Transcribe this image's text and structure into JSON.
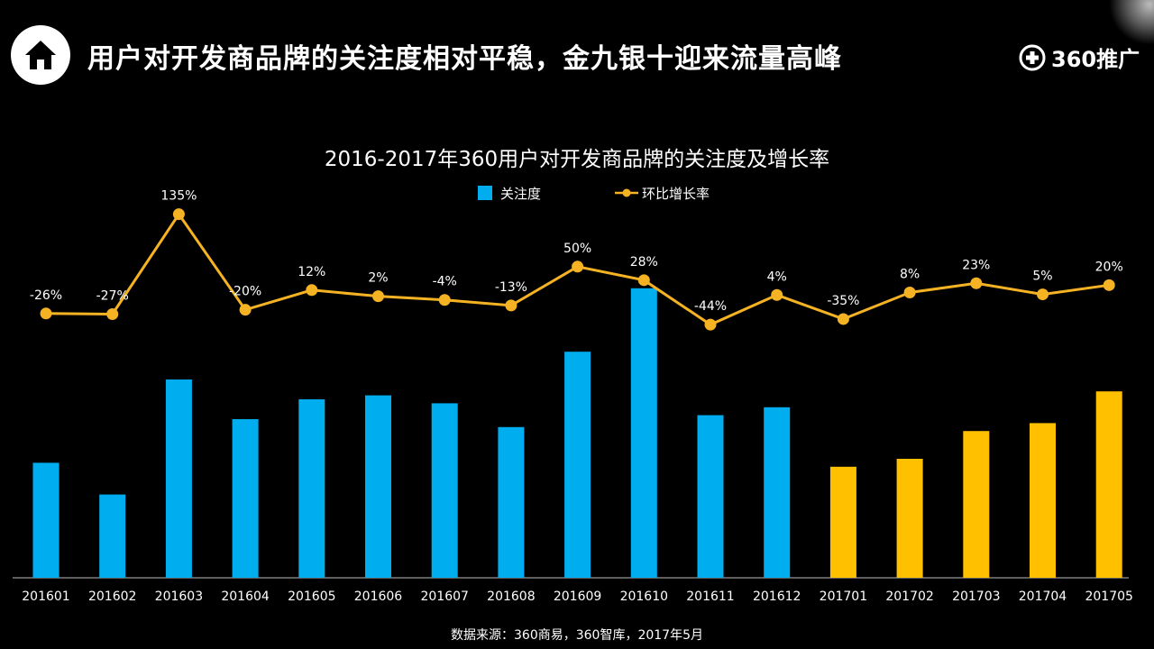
{
  "header": {
    "title": "用户对开发商品牌的关注度相对平稳，金九银十迎来流量高峰",
    "logo_text": "360推广"
  },
  "chart_data": {
    "type": "bar",
    "title": "2016-2017年360用户对开发商品牌的关注度及增长率",
    "categories": [
      "201601",
      "201602",
      "201603",
      "201604",
      "201605",
      "201606",
      "201607",
      "201608",
      "201609",
      "201610",
      "201611",
      "201612",
      "201701",
      "201702",
      "201703",
      "201704",
      "201705"
    ],
    "series": [
      {
        "name": "关注度",
        "type": "bar",
        "values": [
          29,
          21,
          50,
          40,
          45,
          46,
          44,
          38,
          57,
          73,
          41,
          43,
          28,
          30,
          37,
          39,
          47
        ]
      },
      {
        "name": "环比增长率",
        "type": "line",
        "values": [
          -26,
          -27,
          135,
          -20,
          12,
          2,
          -4,
          -13,
          50,
          28,
          -44,
          4,
          -35,
          8,
          23,
          5,
          20
        ],
        "labels": [
          "-26%",
          "-27%",
          "135%",
          "-20%",
          "12%",
          "2%",
          "-4%",
          "-13%",
          "50%",
          "28%",
          "-44%",
          "4%",
          "-35%",
          "8%",
          "23%",
          "5%",
          "20%"
        ]
      }
    ],
    "legend_position": "top-center",
    "grid": false,
    "colors": {
      "bar_2016": "#00aef0",
      "bar_2017": "#ffc000",
      "line": "#f5b324"
    }
  },
  "footer": {
    "source": "数据来源：360商易，360智库，2017年5月"
  }
}
